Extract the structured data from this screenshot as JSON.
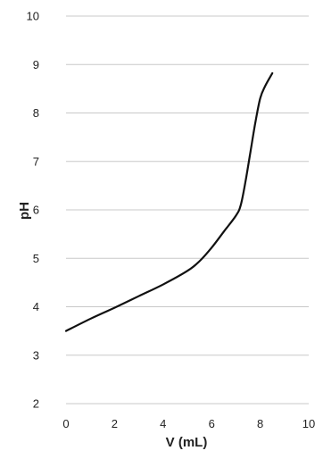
{
  "chart_data": {
    "type": "line",
    "title": "",
    "xlabel": "V (mL)",
    "ylabel": "pH",
    "xlim": [
      0,
      10
    ],
    "ylim": [
      2,
      10
    ],
    "x_ticks": [
      "0",
      "2",
      "4",
      "6",
      "8",
      "10"
    ],
    "y_ticks": [
      "2",
      "3",
      "4",
      "5",
      "6",
      "7",
      "8",
      "9",
      "10"
    ],
    "grid": "horizontal",
    "legend": "none",
    "series": [
      {
        "color": "#111111",
        "x": [
          0,
          1,
          2,
          3,
          4,
          5,
          5.5,
          6,
          6.5,
          7,
          7.2,
          7.4,
          7.6,
          7.8,
          8,
          8.2,
          8.5
        ],
        "y": [
          3.5,
          3.75,
          3.98,
          4.22,
          4.46,
          4.74,
          4.94,
          5.22,
          5.55,
          5.88,
          6.1,
          6.6,
          7.2,
          7.8,
          8.3,
          8.55,
          8.82
        ]
      }
    ]
  }
}
